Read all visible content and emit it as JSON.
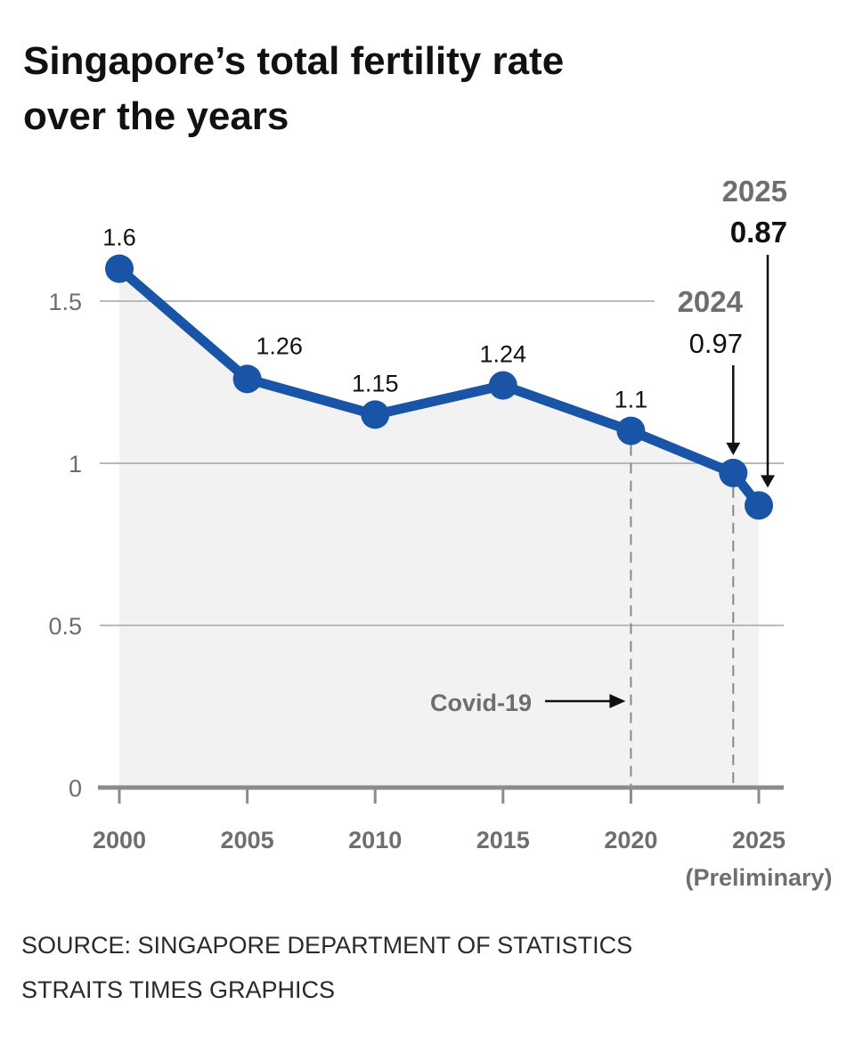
{
  "title_lines": [
    "Singapore’s total fertility rate",
    "over the years"
  ],
  "source_lines": [
    "SOURCE: SINGAPORE DEPARTMENT OF STATISTICS",
    "STRAITS TIMES GRAPHICS"
  ],
  "colors": {
    "line": "#1a54a6",
    "area": "#f1f2f1",
    "grid": "#b9b9b9",
    "axis": "#8c8c8c",
    "muted": "#6e6e6e"
  },
  "chart_data": {
    "type": "line",
    "title": "Singapore’s total fertility rate over the years",
    "xlabel": "",
    "ylabel": "",
    "x": [
      2000,
      2005,
      2010,
      2015,
      2020,
      2024,
      2025
    ],
    "values": [
      1.6,
      1.26,
      1.15,
      1.24,
      1.1,
      0.97,
      0.87
    ],
    "data_labels": [
      "1.6",
      "1.26",
      "1.15",
      "1.24",
      "1.1",
      "",
      ""
    ],
    "ylim": [
      0,
      1.7
    ],
    "xlim": [
      2000,
      2025
    ],
    "yticks": [
      0,
      0.5,
      1,
      1.5
    ],
    "ytick_labels": [
      "0",
      "0.5",
      "1",
      "1.5"
    ],
    "xticks": [
      2000,
      2005,
      2010,
      2015,
      2020,
      2025
    ],
    "xtick_labels": [
      "2000",
      "2005",
      "2010",
      "2015",
      "2020",
      "2025"
    ],
    "xtick_sub": "(Preliminary)",
    "grid": true,
    "annotations": [
      {
        "year": 2024,
        "year_label": "2024",
        "value_label": "0.97",
        "bold_value": false
      },
      {
        "year": 2025,
        "year_label": "2025",
        "value_label": "0.87",
        "bold_value": true
      }
    ],
    "event": {
      "label": "Covid-19",
      "year": 2020
    }
  }
}
